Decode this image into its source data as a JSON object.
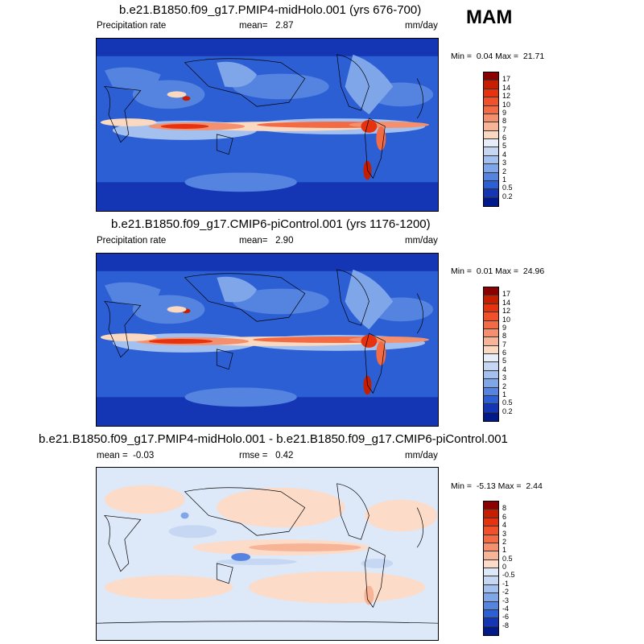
{
  "season": "MAM",
  "panels": [
    {
      "title": "b.e21.B1850.f09_g17.PMIP4-midHolo.001 (yrs 676-700)",
      "left_label": "Precipitation rate",
      "mean_label": "mean=",
      "mean_value": "2.87",
      "units": "mm/day",
      "min_label": "Min =",
      "min_value": "0.04",
      "max_label": "Max =",
      "max_value": "21.71"
    },
    {
      "title": "b.e21.B1850.f09_g17.CMIP6-piControl.001 (yrs 1176-1200)",
      "left_label": "Precipitation rate",
      "mean_label": "mean=",
      "mean_value": "2.90",
      "units": "mm/day",
      "min_label": "Min =",
      "min_value": "0.01",
      "max_label": "Max =",
      "max_value": "24.96"
    },
    {
      "title": "b.e21.B1850.f09_g17.PMIP4-midHolo.001 - b.e21.B1850.f09_g17.CMIP6-piControl.001",
      "mean_label": "mean =",
      "mean_value": "-0.03",
      "rmse_label": "rmse =",
      "rmse_value": "0.42",
      "units": "mm/day",
      "min_label": "Min =",
      "min_value": "-5.13",
      "max_label": "Max =",
      "max_value": "2.44"
    }
  ],
  "precip_colorbar": {
    "labels": [
      "17",
      "14",
      "12",
      "10",
      "9",
      "8",
      "7",
      "6",
      "5",
      "4",
      "3",
      "2",
      "1",
      "0.5",
      "0.2"
    ],
    "colors": [
      "#8b0000",
      "#c81e00",
      "#e6320f",
      "#f0502a",
      "#f26b44",
      "#f5906e",
      "#f8b496",
      "#fbd8c0",
      "#e8eef8",
      "#c5d7f2",
      "#a4c0ee",
      "#7fa6e8",
      "#5584e0",
      "#2d5fd4",
      "#1436b4",
      "#001a8c"
    ]
  },
  "diff_colorbar": {
    "labels": [
      "8",
      "6",
      "4",
      "3",
      "2",
      "1",
      "0.5",
      "0",
      "-0.5",
      "-1",
      "-2",
      "-3",
      "-4",
      "-6",
      "-8"
    ],
    "colors": [
      "#8b0000",
      "#c81e00",
      "#e6320f",
      "#f0502a",
      "#f26b44",
      "#f5906e",
      "#f8b496",
      "#fcdcc8",
      "#dde8f8",
      "#c5d7f2",
      "#a4c0ee",
      "#7fa6e8",
      "#5584e0",
      "#2d5fd4",
      "#1436b4",
      "#001a8c"
    ]
  }
}
